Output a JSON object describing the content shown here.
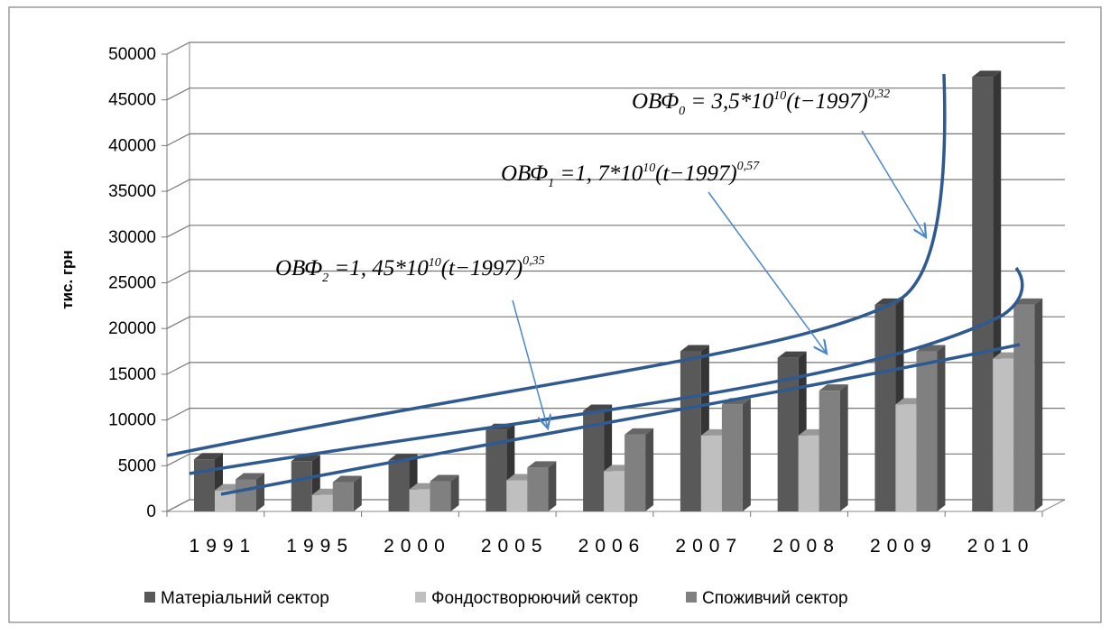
{
  "chart_data": {
    "type": "bar3d",
    "y_label": "тис. грн",
    "categories": [
      "1991",
      "1995",
      "2000",
      "2005",
      "2006",
      "2007",
      "2008",
      "2009",
      "2010"
    ],
    "series": [
      {
        "name": "Матеріальний сектор",
        "color": "#595959",
        "values": [
          5700,
          5500,
          5600,
          8900,
          11000,
          17500,
          16800,
          22600,
          47500
        ]
      },
      {
        "name": "Фондостворюючий сектор",
        "color": "#bfbfbf",
        "values": [
          2300,
          1800,
          2400,
          3400,
          4400,
          8300,
          8300,
          11700,
          16700
        ]
      },
      {
        "name": "Споживчий сектор",
        "color": "#808080",
        "values": [
          3500,
          3200,
          3300,
          4800,
          8400,
          11700,
          13200,
          17500,
          22600
        ]
      }
    ],
    "ylim": [
      0,
      50000
    ],
    "yticks": [
      0,
      5000,
      10000,
      15000,
      20000,
      25000,
      30000,
      35000,
      40000,
      45000,
      50000
    ],
    "grid": true,
    "legend": "bottom",
    "annotations": [
      {
        "base": "ОВФ",
        "sub": "0",
        "coef": " = 3,5*10",
        "pow10": "10",
        "arg": "(t−1997)",
        "power": "0,32"
      },
      {
        "base": "ОВФ",
        "sub": "1",
        "coef": " =1, 7*10",
        "pow10": "10",
        "arg": "(t−1997)",
        "power": "0,57"
      },
      {
        "base": "ОВФ",
        "sub": "2",
        "coef": " =1, 45*10",
        "pow10": "10",
        "arg": "(t−1997)",
        "power": "0,35"
      }
    ]
  }
}
